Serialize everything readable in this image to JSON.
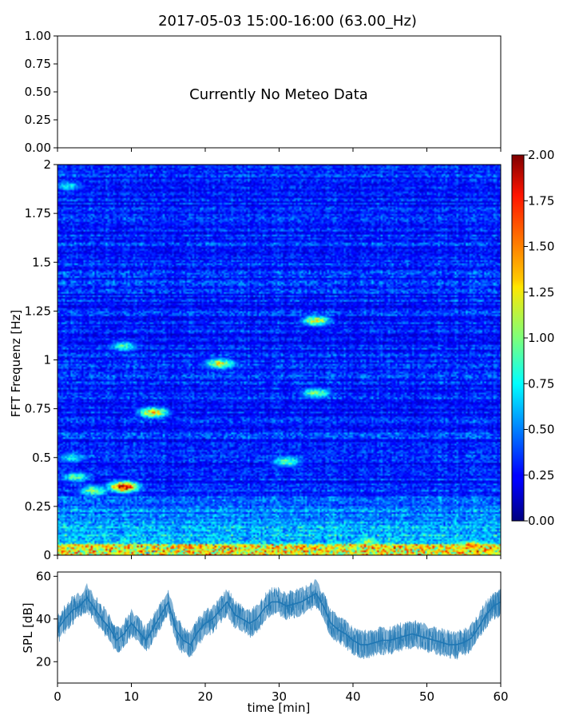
{
  "title": "2017-05-03 15:00-16:00 (63.00_Hz)",
  "chart_data": [
    {
      "type": "line",
      "panel": "meteo",
      "annotation": "Currently No Meteo Data",
      "ylim": [
        0,
        1
      ],
      "yticks": [
        "0.00",
        "0.25",
        "0.50",
        "0.75",
        "1.00"
      ],
      "xlim": [
        0,
        60
      ],
      "x_ticklabels_visible": false
    },
    {
      "type": "heatmap",
      "panel": "spectrogram",
      "ylabel": "FFT Frequenz [Hz]",
      "ylim": [
        0,
        2
      ],
      "yticks": [
        "0",
        "0.25",
        "0.5",
        "0.75",
        "1",
        "1.25",
        "1.5",
        "1.75",
        "2"
      ],
      "xlim": [
        0,
        60
      ],
      "colormap": "jet",
      "colorbar": {
        "range": [
          0,
          2
        ],
        "ticks": [
          "0.00",
          "0.25",
          "0.50",
          "0.75",
          "1.00",
          "1.25",
          "1.50",
          "1.75",
          "2.00"
        ]
      },
      "background_level": 0.3,
      "hotspots": [
        {
          "t": 1.5,
          "f": 1.89,
          "v": 0.75
        },
        {
          "t": 9,
          "f": 1.07,
          "v": 0.9
        },
        {
          "t": 13,
          "f": 0.73,
          "v": 1.4
        },
        {
          "t": 22,
          "f": 0.98,
          "v": 1.25
        },
        {
          "t": 35,
          "f": 1.2,
          "v": 1.2
        },
        {
          "t": 35,
          "f": 0.83,
          "v": 1.05
        },
        {
          "t": 31,
          "f": 0.48,
          "v": 1.0
        },
        {
          "t": 9,
          "f": 0.35,
          "v": 1.9
        },
        {
          "t": 2.5,
          "f": 0.4,
          "v": 0.95
        },
        {
          "t": 2,
          "f": 0.5,
          "v": 0.8
        },
        {
          "t": 5,
          "f": 0.33,
          "v": 1.1
        },
        {
          "t": 42,
          "f": 0.07,
          "v": 1.1
        },
        {
          "t": 56,
          "f": 0.05,
          "v": 1.5
        }
      ]
    },
    {
      "type": "line",
      "panel": "spl",
      "xlabel": "time [min]",
      "ylabel": "SPL [dB]",
      "xlim": [
        0,
        60
      ],
      "ylim": [
        10,
        62
      ],
      "xticks": [
        "0",
        "10",
        "20",
        "30",
        "40",
        "50",
        "60"
      ],
      "yticks": [
        "20",
        "40",
        "60"
      ],
      "color": "#1f77b4",
      "x": [
        0,
        1,
        2,
        3,
        4,
        5,
        6,
        7,
        8,
        9,
        10,
        11,
        12,
        13,
        14,
        15,
        16,
        17,
        18,
        19,
        20,
        21,
        22,
        23,
        24,
        25,
        26,
        27,
        28,
        29,
        30,
        31,
        32,
        33,
        34,
        35,
        36,
        37,
        38,
        39,
        40,
        41,
        42,
        43,
        44,
        45,
        46,
        47,
        48,
        49,
        50,
        51,
        52,
        53,
        54,
        55,
        56,
        57,
        58,
        59,
        60
      ],
      "values": [
        35,
        40,
        44,
        46,
        50,
        45,
        40,
        36,
        30,
        33,
        38,
        34,
        30,
        36,
        42,
        48,
        35,
        30,
        28,
        34,
        38,
        40,
        44,
        48,
        42,
        40,
        38,
        40,
        45,
        48,
        48,
        46,
        47,
        48,
        50,
        52,
        46,
        38,
        35,
        33,
        30,
        28,
        28,
        29,
        30,
        30,
        31,
        32,
        33,
        32,
        31,
        30,
        29,
        28,
        28,
        29,
        31,
        36,
        42,
        46,
        48
      ]
    }
  ]
}
